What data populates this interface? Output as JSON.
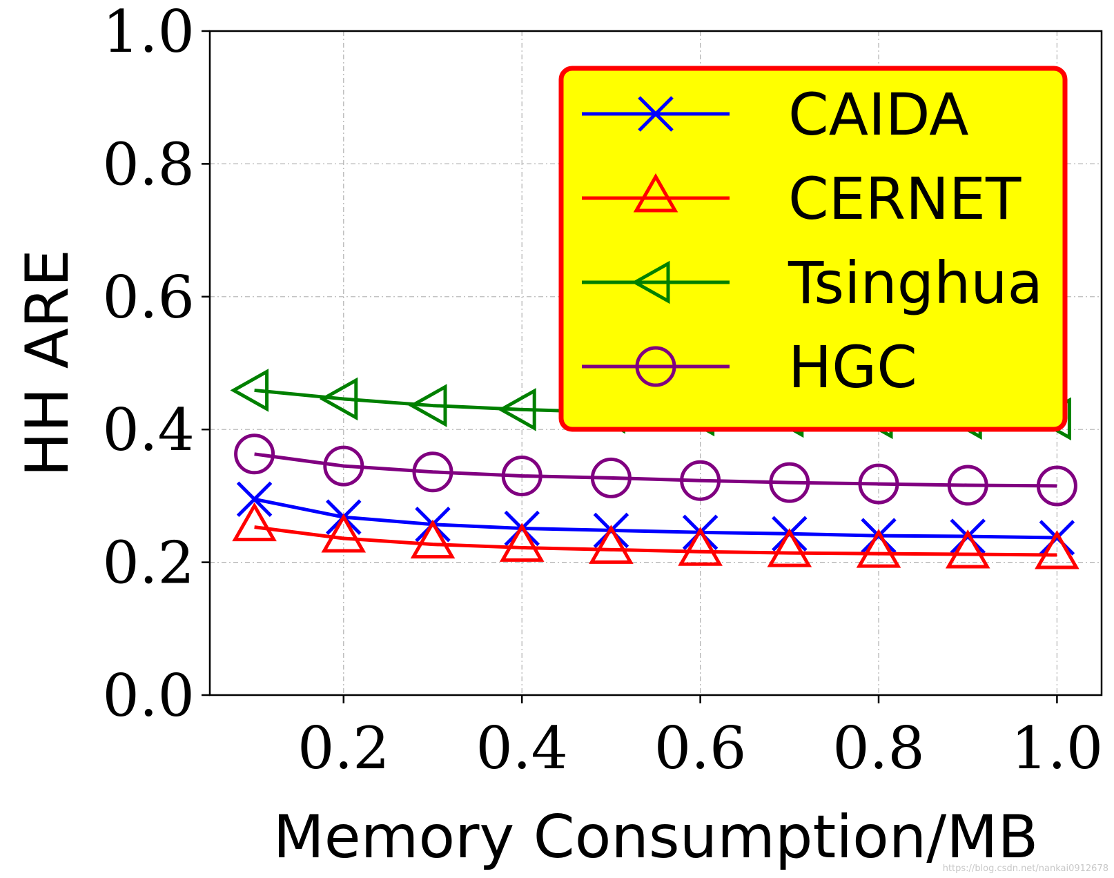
{
  "chart_data": {
    "type": "line",
    "xlabel": "Memory Consumption/MB",
    "ylabel": "HH ARE",
    "xlim": [
      0.05,
      1.05
    ],
    "ylim": [
      0.0,
      1.0
    ],
    "xticks": [
      0.2,
      0.4,
      0.6,
      0.8,
      1.0
    ],
    "xtick_labels": [
      "0.2",
      "0.4",
      "0.6",
      "0.8",
      "1.0"
    ],
    "yticks": [
      0.0,
      0.2,
      0.4,
      0.6,
      0.8,
      1.0
    ],
    "ytick_labels": [
      "0.0",
      "0.2",
      "0.4",
      "0.6",
      "0.8",
      "1.0"
    ],
    "grid": true,
    "legend_position": "top-right",
    "legend_style": {
      "background": "#ffff00",
      "border": "#ff0000"
    },
    "x": [
      0.1,
      0.2,
      0.3,
      0.4,
      0.5,
      0.6,
      0.7,
      0.8,
      0.9,
      1.0
    ],
    "series": [
      {
        "name": "CAIDA",
        "color": "#0000ff",
        "marker": "x",
        "values": [
          0.295,
          0.268,
          0.257,
          0.251,
          0.248,
          0.245,
          0.243,
          0.24,
          0.239,
          0.237
        ]
      },
      {
        "name": "CERNET",
        "color": "#ff0000",
        "marker": "triangle-up",
        "values": [
          0.253,
          0.236,
          0.227,
          0.222,
          0.219,
          0.216,
          0.214,
          0.213,
          0.212,
          0.211
        ]
      },
      {
        "name": "Tsinghua",
        "color": "#008000",
        "marker": "triangle-left",
        "values": [
          0.459,
          0.446,
          0.436,
          0.43,
          0.426,
          0.422,
          0.42,
          0.418,
          0.417,
          0.416
        ]
      },
      {
        "name": "HGC",
        "color": "#800080",
        "marker": "circle",
        "values": [
          0.363,
          0.345,
          0.336,
          0.33,
          0.327,
          0.323,
          0.32,
          0.318,
          0.316,
          0.315
        ]
      }
    ]
  },
  "watermark": "https://blog.csdn.net/nankai0912678"
}
